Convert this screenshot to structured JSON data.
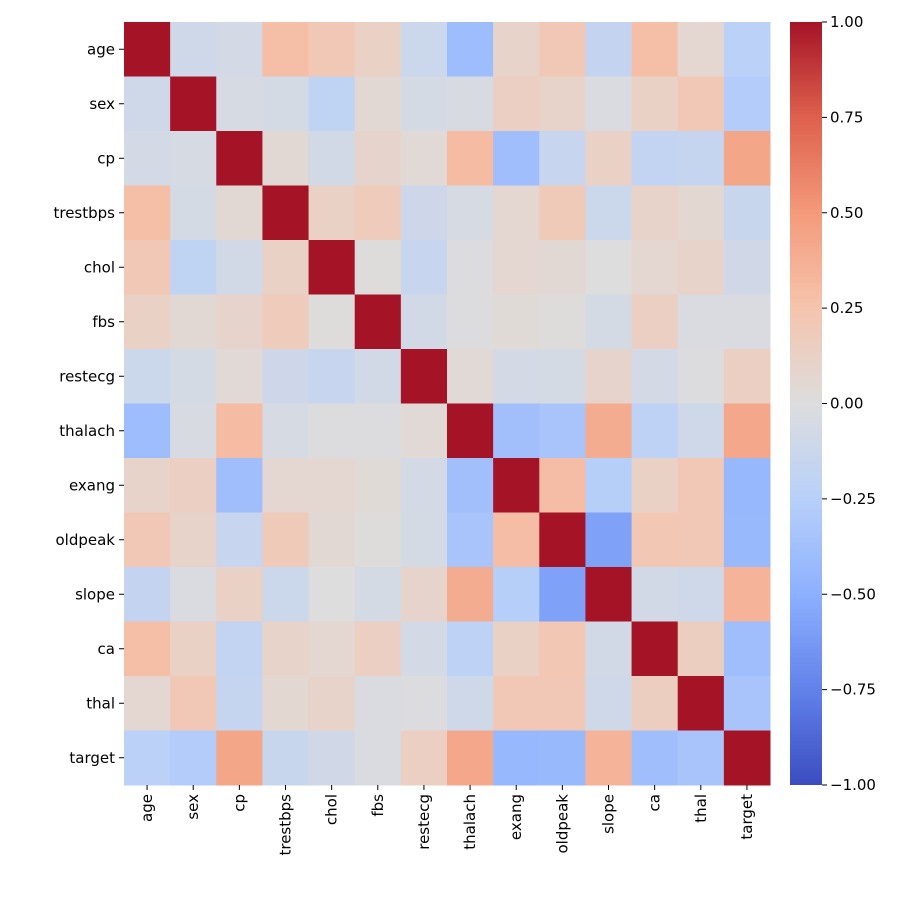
{
  "chart_data": {
    "type": "heatmap",
    "title": "",
    "colormap": "coolwarm",
    "vmin": -1,
    "vmax": 1,
    "labels": [
      "age",
      "sex",
      "cp",
      "trestbps",
      "chol",
      "fbs",
      "restecg",
      "thalach",
      "exang",
      "oldpeak",
      "slope",
      "ca",
      "thal",
      "target"
    ],
    "matrix": [
      [
        1.0,
        -0.1,
        -0.07,
        0.28,
        0.21,
        0.12,
        -0.12,
        -0.4,
        0.1,
        0.21,
        -0.17,
        0.28,
        0.07,
        -0.23
      ],
      [
        -0.1,
        1.0,
        -0.05,
        -0.06,
        -0.2,
        0.05,
        -0.06,
        -0.04,
        0.14,
        0.1,
        -0.03,
        0.12,
        0.21,
        -0.28
      ],
      [
        -0.07,
        -0.05,
        1.0,
        0.05,
        -0.08,
        0.09,
        0.04,
        0.3,
        -0.39,
        -0.15,
        0.12,
        -0.18,
        -0.16,
        0.43
      ],
      [
        0.28,
        -0.06,
        0.05,
        1.0,
        0.12,
        0.18,
        -0.11,
        -0.05,
        0.07,
        0.19,
        -0.12,
        0.1,
        0.06,
        -0.14
      ],
      [
        0.21,
        -0.2,
        -0.08,
        0.12,
        1.0,
        0.01,
        -0.15,
        -0.01,
        0.07,
        0.05,
        0.0,
        0.07,
        0.1,
        -0.09
      ],
      [
        0.12,
        0.05,
        0.09,
        0.18,
        0.01,
        1.0,
        -0.08,
        -0.01,
        0.03,
        0.01,
        -0.06,
        0.14,
        -0.03,
        -0.03
      ],
      [
        -0.12,
        -0.06,
        0.04,
        -0.11,
        -0.15,
        -0.08,
        1.0,
        0.04,
        -0.07,
        -0.06,
        0.09,
        -0.07,
        -0.01,
        0.14
      ],
      [
        -0.4,
        -0.04,
        0.3,
        -0.05,
        -0.01,
        -0.01,
        0.04,
        1.0,
        -0.38,
        -0.34,
        0.39,
        -0.21,
        -0.1,
        0.42
      ],
      [
        0.1,
        0.14,
        -0.39,
        0.07,
        0.07,
        0.03,
        -0.07,
        -0.38,
        1.0,
        0.29,
        -0.26,
        0.12,
        0.21,
        -0.44
      ],
      [
        0.21,
        0.1,
        -0.15,
        0.19,
        0.05,
        0.01,
        -0.06,
        -0.34,
        0.29,
        1.0,
        -0.58,
        0.22,
        0.21,
        -0.43
      ],
      [
        -0.17,
        -0.03,
        0.12,
        -0.12,
        0.0,
        -0.06,
        0.09,
        0.39,
        -0.26,
        -0.58,
        1.0,
        -0.08,
        -0.1,
        0.35
      ],
      [
        0.28,
        0.12,
        -0.18,
        0.1,
        0.07,
        0.14,
        -0.07,
        -0.21,
        0.12,
        0.22,
        -0.08,
        1.0,
        0.15,
        -0.39
      ],
      [
        0.07,
        0.21,
        -0.16,
        0.06,
        0.1,
        -0.03,
        -0.01,
        -0.1,
        0.21,
        0.21,
        -0.1,
        0.15,
        1.0,
        -0.34
      ],
      [
        -0.23,
        -0.28,
        0.43,
        -0.14,
        -0.09,
        -0.03,
        0.14,
        0.42,
        -0.44,
        -0.43,
        0.35,
        -0.39,
        -0.34,
        1.0
      ]
    ],
    "colorbar_ticks": [
      1.0,
      0.75,
      0.5,
      0.25,
      0.0,
      -0.25,
      -0.5,
      -0.75,
      -1.0
    ],
    "colorbar_tick_labels": [
      "1.00",
      "0.75",
      "0.50",
      "0.25",
      "0.00",
      "−0.25",
      "−0.50",
      "−0.75",
      "−1.00"
    ],
    "xlabel": "",
    "ylabel": ""
  }
}
